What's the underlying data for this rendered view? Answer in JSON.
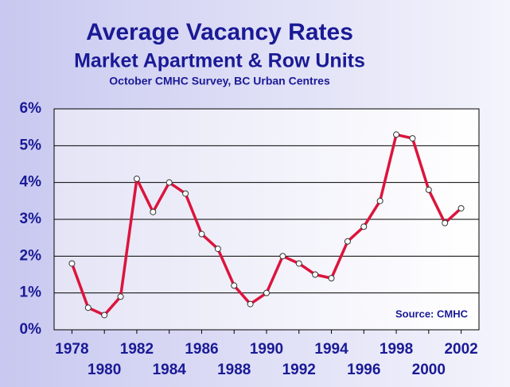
{
  "chart_data": {
    "type": "line",
    "title": "Average Vacancy Rates",
    "subtitle": "Market Apartment & Row Units",
    "subsubtitle": "October CMHC Survey, BC Urban Centres",
    "annotation": "Source: CMHC",
    "x": [
      1978,
      1979,
      1980,
      1981,
      1982,
      1983,
      1984,
      1985,
      1986,
      1987,
      1988,
      1989,
      1990,
      1991,
      1992,
      1993,
      1994,
      1995,
      1996,
      1997,
      1998,
      1999,
      2000,
      2001,
      2002
    ],
    "series": [
      {
        "name": "Vacancy rate",
        "color": "#dc143c",
        "values": [
          1.8,
          0.6,
          0.4,
          0.9,
          4.1,
          3.2,
          4.0,
          3.7,
          2.6,
          2.2,
          1.2,
          0.7,
          1.0,
          2.0,
          1.8,
          1.5,
          1.4,
          2.4,
          2.8,
          3.5,
          5.3,
          5.2,
          3.8,
          2.9,
          3.3
        ]
      }
    ],
    "xlim": [
      1976.9,
      2003.1
    ],
    "xticks": [
      1978,
      1980,
      1982,
      1984,
      1986,
      1988,
      1990,
      1992,
      1994,
      1996,
      1998,
      2000,
      2002
    ],
    "ylim": [
      0,
      6
    ],
    "yticks": [
      {
        "value": 0,
        "label": "0%"
      },
      {
        "value": 1,
        "label": "1%"
      },
      {
        "value": 2,
        "label": "2%"
      },
      {
        "value": 3,
        "label": "3%"
      },
      {
        "value": 4,
        "label": "4%"
      },
      {
        "value": 5,
        "label": "5%"
      },
      {
        "value": 6,
        "label": "6%"
      }
    ],
    "grid": true
  }
}
